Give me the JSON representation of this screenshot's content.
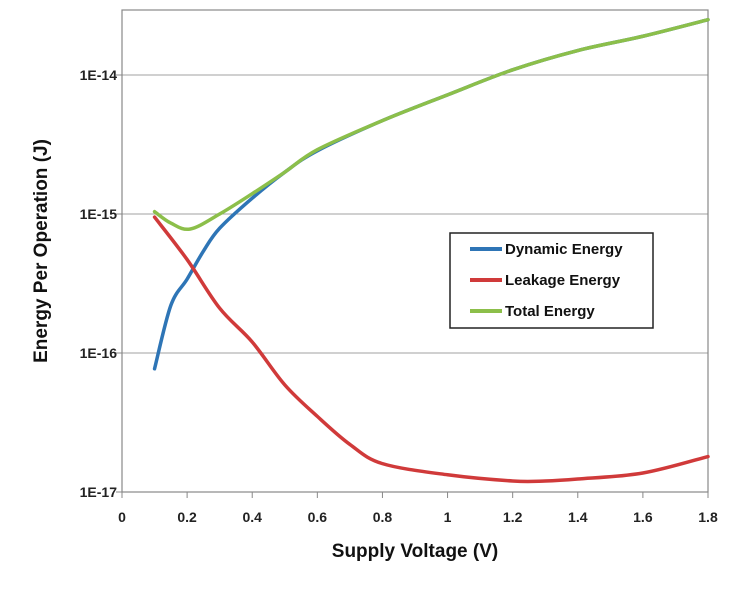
{
  "chart_data": {
    "type": "line",
    "title": "",
    "xlabel": "Supply Voltage (V)",
    "ylabel": "Energy Per Operation (J)",
    "xlim": [
      0,
      1.8
    ],
    "ylim": [
      1e-17,
      3e-14
    ],
    "yscale": "log",
    "grid": "horizontal",
    "legend_position": "center-right",
    "x_ticks": [
      "0",
      "0.2",
      "0.4",
      "0.6",
      "0.8",
      "1",
      "1.2",
      "1.4",
      "1.6",
      "1.8"
    ],
    "y_ticks": [
      "1E-17",
      "1E-16",
      "1E-15",
      "1E-14"
    ],
    "series": [
      {
        "name": "Dynamic Energy",
        "color": "#2e75b6",
        "x": [
          0.1,
          0.15,
          0.2,
          0.25,
          0.3,
          0.4,
          0.5,
          0.6,
          0.8,
          1.0,
          1.2,
          1.4,
          1.6,
          1.8
        ],
        "y": [
          7.7e-17,
          2.2e-16,
          3.4e-16,
          5.4e-16,
          7.9e-16,
          1.3e-15,
          2e-15,
          2.85e-15,
          4.7e-15,
          7.2e-15,
          1.09e-14,
          1.5e-14,
          1.9e-14,
          2.5e-14
        ]
      },
      {
        "name": "Leakage Energy",
        "color": "#d03a3a",
        "x": [
          0.1,
          0.2,
          0.3,
          0.4,
          0.5,
          0.6,
          0.7,
          0.8,
          1.0,
          1.2,
          1.3,
          1.4,
          1.6,
          1.8
        ],
        "y": [
          9.5e-16,
          4.7e-16,
          2.1e-16,
          1.2e-16,
          5.9e-17,
          3.5e-17,
          2.2e-17,
          1.6e-17,
          1.33e-17,
          1.2e-17,
          1.2e-17,
          1.24e-17,
          1.37e-17,
          1.8e-17
        ]
      },
      {
        "name": "Total Energy",
        "color": "#8cbf4a",
        "x": [
          0.1,
          0.15,
          0.21,
          0.3,
          0.4,
          0.5,
          0.6,
          0.8,
          1.0,
          1.2,
          1.4,
          1.6,
          1.8
        ],
        "y": [
          1.04e-15,
          8.6e-16,
          7.8e-16,
          1e-15,
          1.4e-15,
          2e-15,
          2.9e-15,
          4.7e-15,
          7.2e-15,
          1.09e-14,
          1.5e-14,
          1.9e-14,
          2.5e-14
        ]
      }
    ]
  }
}
